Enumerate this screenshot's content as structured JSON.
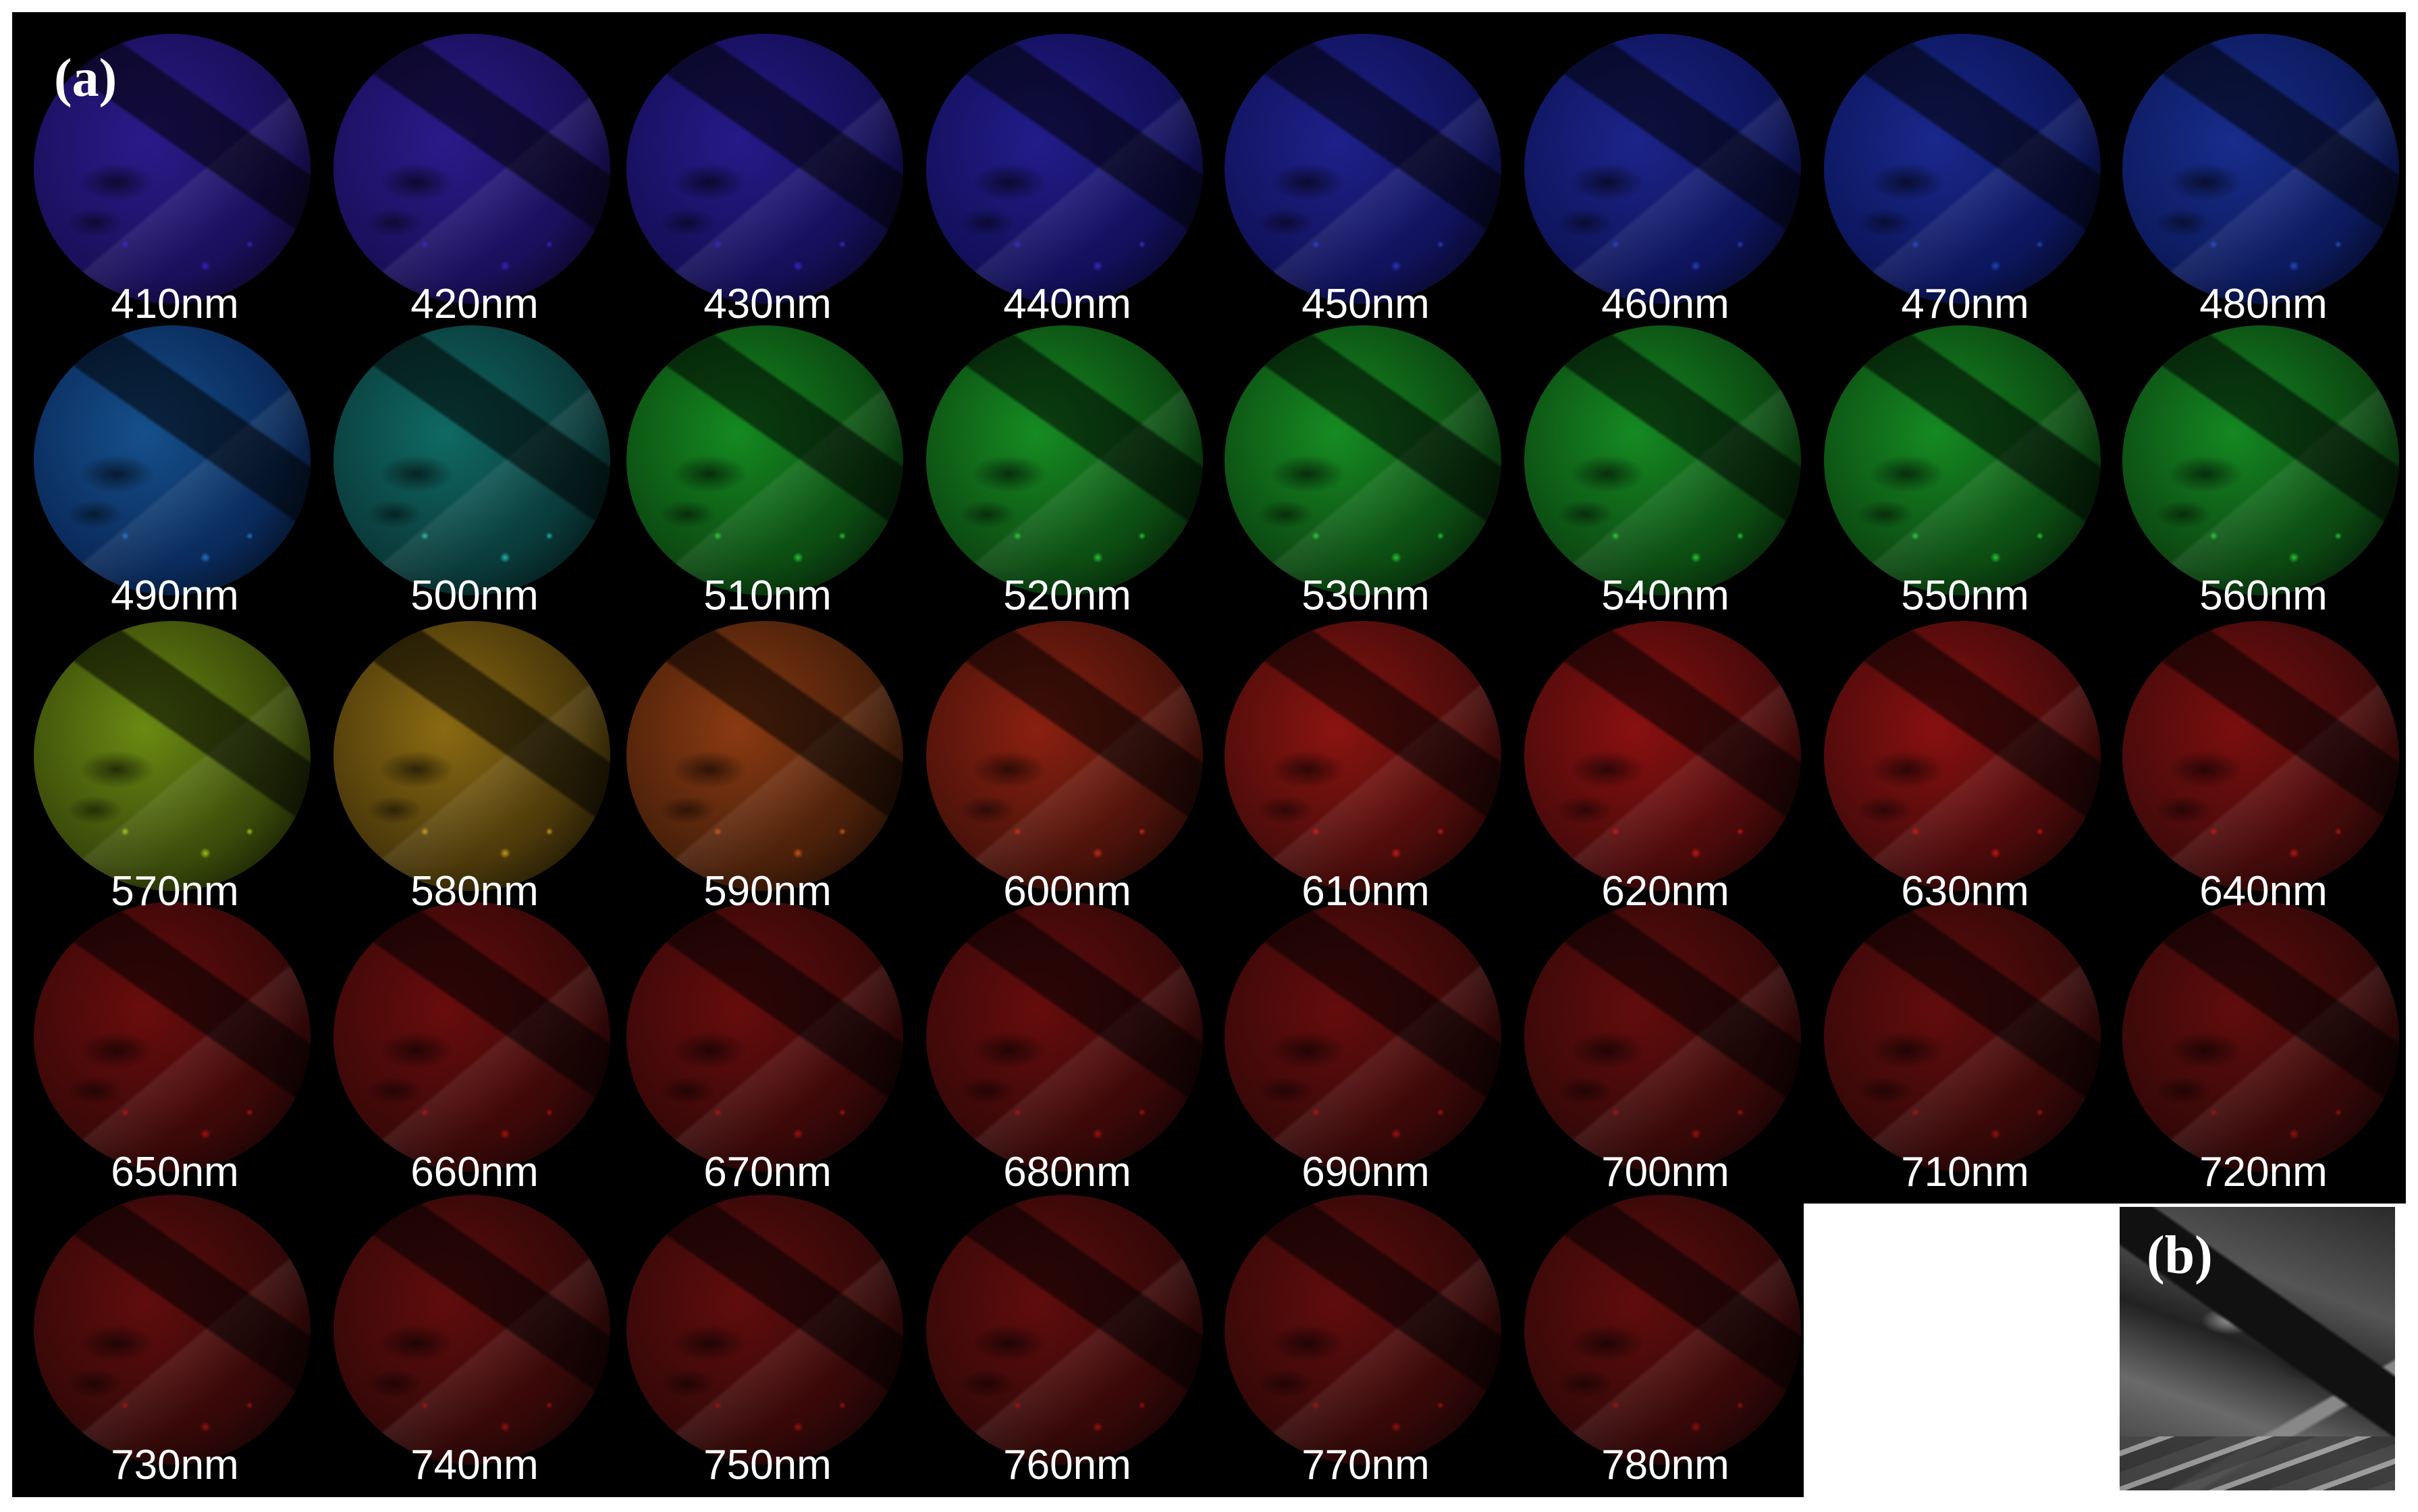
{
  "panel_a_label": "(a)",
  "panel_b_label": "(b)",
  "bands": [
    {
      "label": "410nm",
      "color": "#1a0f5a",
      "core": "#2a1a8a",
      "spot": "#3a2ad0"
    },
    {
      "label": "420nm",
      "color": "#1a0f5a",
      "core": "#2a1a8a",
      "spot": "#3a2ad0"
    },
    {
      "label": "430nm",
      "color": "#150f58",
      "core": "#251a88",
      "spot": "#3a30d0"
    },
    {
      "label": "440nm",
      "color": "#12105a",
      "core": "#221c8a",
      "spot": "#3a36d0"
    },
    {
      "label": "450nm",
      "color": "#10125a",
      "core": "#1f208a",
      "spot": "#3040d0"
    },
    {
      "label": "460nm",
      "color": "#0e145a",
      "core": "#1c248a",
      "spot": "#2c48d0"
    },
    {
      "label": "470nm",
      "color": "#0c165c",
      "core": "#1a288c",
      "spot": "#2850d0"
    },
    {
      "label": "480nm",
      "color": "#0c1a5c",
      "core": "#182c8c",
      "spot": "#2858d0"
    },
    {
      "label": "490nm",
      "color": "#0a2a5a",
      "core": "#15508c",
      "spot": "#2a80d8"
    },
    {
      "label": "500nm",
      "color": "#0a3a3a",
      "core": "#0f6a64",
      "spot": "#2ad0c0"
    },
    {
      "label": "510nm",
      "color": "#0c4a12",
      "core": "#148a20",
      "spot": "#30e040"
    },
    {
      "label": "520nm",
      "color": "#0c4a12",
      "core": "#168c22",
      "spot": "#30e040"
    },
    {
      "label": "530nm",
      "color": "#0c4a12",
      "core": "#168c22",
      "spot": "#30e040"
    },
    {
      "label": "540nm",
      "color": "#0c4a12",
      "core": "#158a22",
      "spot": "#30e040"
    },
    {
      "label": "550nm",
      "color": "#0c4a12",
      "core": "#158a22",
      "spot": "#30e040"
    },
    {
      "label": "560nm",
      "color": "#0c4812",
      "core": "#148822",
      "spot": "#30e040"
    },
    {
      "label": "570nm",
      "color": "#3a4a0a",
      "core": "#6a8a12",
      "spot": "#b0e020"
    },
    {
      "label": "580nm",
      "color": "#4a380a",
      "core": "#8a6a12",
      "spot": "#e0b020"
    },
    {
      "label": "590nm",
      "color": "#4a200a",
      "core": "#8a3a12",
      "spot": "#e06020"
    },
    {
      "label": "600nm",
      "color": "#4a120a",
      "core": "#8a2010",
      "spot": "#e03020"
    },
    {
      "label": "610nm",
      "color": "#4a0c0a",
      "core": "#8a1410",
      "spot": "#e02020"
    },
    {
      "label": "620nm",
      "color": "#4a0a0a",
      "core": "#8a1010",
      "spot": "#e01818"
    },
    {
      "label": "630nm",
      "color": "#480a0a",
      "core": "#881010",
      "spot": "#e01818"
    },
    {
      "label": "640nm",
      "color": "#420a0a",
      "core": "#7a0e0e",
      "spot": "#d01818"
    },
    {
      "label": "650nm",
      "color": "#3a0808",
      "core": "#6a0c0c",
      "spot": "#c01414"
    },
    {
      "label": "660nm",
      "color": "#3a0808",
      "core": "#680c0c",
      "spot": "#c01414"
    },
    {
      "label": "670nm",
      "color": "#380808",
      "core": "#660c0c",
      "spot": "#b81414"
    },
    {
      "label": "680nm",
      "color": "#380808",
      "core": "#660c0c",
      "spot": "#b81414"
    },
    {
      "label": "690nm",
      "color": "#380808",
      "core": "#640c0c",
      "spot": "#b81414"
    },
    {
      "label": "700nm",
      "color": "#360808",
      "core": "#620c0c",
      "spot": "#b01414"
    },
    {
      "label": "710nm",
      "color": "#360808",
      "core": "#620c0c",
      "spot": "#b01414"
    },
    {
      "label": "720nm",
      "color": "#340808",
      "core": "#600c0c",
      "spot": "#a81414"
    },
    {
      "label": "730nm",
      "color": "#340808",
      "core": "#600c0c",
      "spot": "#a81414"
    },
    {
      "label": "740nm",
      "color": "#340808",
      "core": "#600c0c",
      "spot": "#a81414"
    },
    {
      "label": "750nm",
      "color": "#340808",
      "core": "#600c0c",
      "spot": "#a81414"
    },
    {
      "label": "760nm",
      "color": "#340808",
      "core": "#600c0c",
      "spot": "#a81414"
    },
    {
      "label": "770nm",
      "color": "#340808",
      "core": "#600c0c",
      "spot": "#a81414"
    },
    {
      "label": "780nm",
      "color": "#340808",
      "core": "#600c0c",
      "spot": "#a81414"
    }
  ]
}
